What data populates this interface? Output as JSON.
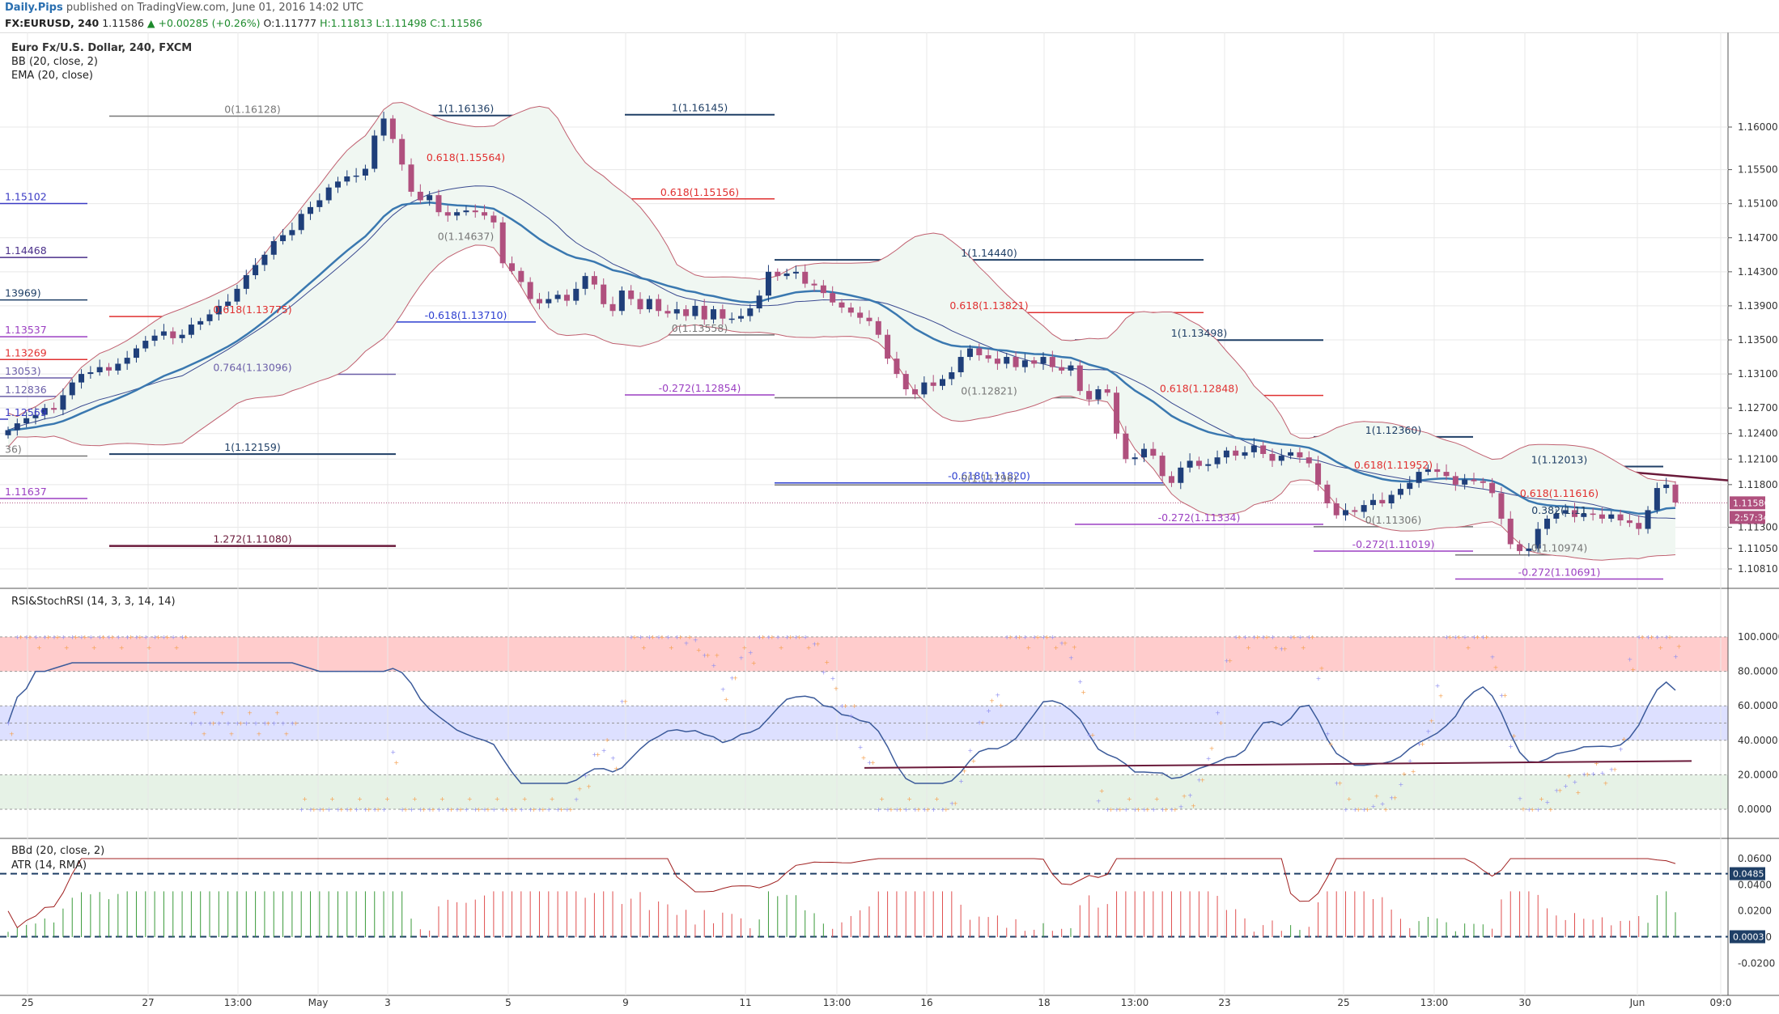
{
  "header": {
    "brand": "Daily.Pips",
    "published": "published on TradingView.com, June 01, 2016 14:02 UTC",
    "symbol": "FX:EURUSD, 240",
    "last": "1.11586",
    "change": "▲ +0.00285 (+0.26%)",
    "open": "O:1.11777",
    "high": "H:1.11813",
    "low": "L:1.11498",
    "close": "C:1.11586"
  },
  "price_pane": {
    "title": "Euro Fx/U.S. Dollar, 240, FXCM",
    "indicators": [
      "BB (20, close, 2)",
      "EMA (20, close)"
    ],
    "axis_labels": [
      "1.16000",
      "1.15500",
      "1.15100",
      "1.14700",
      "1.14300",
      "1.13900",
      "1.13500",
      "1.13100",
      "1.12700",
      "1.12400",
      "1.12100",
      "1.11800",
      "1.11300",
      "1.11050",
      "1.10810"
    ],
    "last_price_tag": "1.11586",
    "countdown_tag": "2:57:34",
    "fib_labels": [
      {
        "text": "0(1.16128)",
        "color": "#777777"
      },
      {
        "text": "1(1.16136)",
        "color": "#1f3f66"
      },
      {
        "text": "1(1.16145)",
        "color": "#1f3f66"
      },
      {
        "text": "0.618(1.15564)",
        "color": "#e03030"
      },
      {
        "text": "0.618(1.15156)",
        "color": "#e03030"
      },
      {
        "text": "0(1.14637)",
        "color": "#777777"
      },
      {
        "text": "1(1.14440)",
        "color": "#1f3f66"
      },
      {
        "text": "0.618(1.13821)",
        "color": "#e03030"
      },
      {
        "text": "0.618(1.13775)",
        "color": "#e03030"
      },
      {
        "text": "-0.618(1.13710)",
        "color": "#2d3fd0"
      },
      {
        "text": "0(1.13558)",
        "color": "#777777"
      },
      {
        "text": "1(1.13498)",
        "color": "#1f3f66"
      },
      {
        "text": "0.764(1.13096)",
        "color": "#6b5fa8"
      },
      {
        "text": "-0.272(1.12854)",
        "color": "#9b3fc2"
      },
      {
        "text": "0(1.12821)",
        "color": "#777777"
      },
      {
        "text": "0.618(1.12848)",
        "color": "#e03030"
      },
      {
        "text": "1(1.12360)",
        "color": "#1f3f66"
      },
      {
        "text": "1(1.12159)",
        "color": "#1f3f66"
      },
      {
        "text": "0.618(1.11952)",
        "color": "#e03030"
      },
      {
        "text": "1(1.12013)",
        "color": "#1f3f66"
      },
      {
        "text": "-0.618(1.11820)",
        "color": "#2d3fd0"
      },
      {
        "text": "0(1.11796)",
        "color": "#777777"
      },
      {
        "text": "0.618(1.11616)",
        "color": "#e03030"
      },
      {
        "text": "0.382(1.11",
        "color": "#1f3f66"
      },
      {
        "text": "-0.272(1.11334)",
        "color": "#9b3fc2"
      },
      {
        "text": "0(1.11306)",
        "color": "#777777"
      },
      {
        "text": "1.272(1.11080)",
        "color": "#6a1a3a"
      },
      {
        "text": "-0.272(1.11019)",
        "color": "#9b3fc2"
      },
      {
        "text": "0(1.10974)",
        "color": "#777777"
      },
      {
        "text": "-0.272(1.10691)",
        "color": "#9b3fc2"
      }
    ],
    "left_edge_labels": [
      {
        "text": "1.15102",
        "color": "#3b3bc4"
      },
      {
        "text": "1.14468",
        "color": "#4a2f8a"
      },
      {
        "text": "13969)",
        "color": "#1f3f66"
      },
      {
        "text": "1.13537",
        "color": "#9b3fc2"
      },
      {
        "text": "1.13269",
        "color": "#e03030"
      },
      {
        "text": "13053)",
        "color": "#6b5fa8"
      },
      {
        "text": "1.12836",
        "color": "#6b5fa8"
      },
      {
        "text": "1.12569",
        "color": "#3b3bc4"
      },
      {
        "text": "36)",
        "color": "#777777"
      },
      {
        "text": "1.11637",
        "color": "#9b3fc2"
      }
    ]
  },
  "rsi_pane": {
    "title": "RSI&StochRSI (14, 3, 3, 14, 14)",
    "axis_labels": [
      "100.0000",
      "80.0000",
      "60.0000",
      "40.0000",
      "20.0000",
      "0.0000"
    ]
  },
  "bbd_pane": {
    "indicators": [
      "BBd (20, close, 2)",
      "ATR (14, RMA)"
    ],
    "axis_labels": [
      "0.0600",
      "0.0400",
      "0.0200",
      "0.0000",
      "-0.0200"
    ],
    "tag_upper": "0.0485",
    "tag_lower": "0.0003"
  },
  "time_axis": [
    "25",
    "27",
    "13:00",
    "May",
    "3",
    "5",
    "9",
    "11",
    "13:00",
    "16",
    "18",
    "13:00",
    "23",
    "25",
    "13:00",
    "30",
    "Jun",
    "09:0"
  ],
  "colors": {
    "bull": "#1f3f7a",
    "bear": "#b0507e",
    "bb": "#c06070",
    "ema": "#3a78b0",
    "bbfill": "#f0f7f2",
    "rsi_ob": "#ffcccc",
    "rsi_mid": "#dde0ff",
    "rsi_os": "#e6f2e6",
    "grid": "#e8e8e8"
  }
}
